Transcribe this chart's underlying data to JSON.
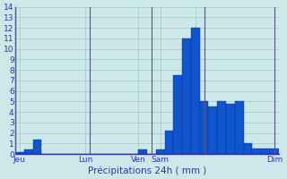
{
  "title": "",
  "xlabel": "Précipitations 24h ( mm )",
  "background_color": "#cce8e8",
  "bar_color": "#1155cc",
  "bar_edge_color": "#0033aa",
  "grid_color": "#aacccc",
  "text_color": "#3333aa",
  "ylim": [
    0,
    14
  ],
  "yticks": [
    0,
    1,
    2,
    3,
    4,
    5,
    6,
    7,
    8,
    9,
    10,
    11,
    12,
    13,
    14
  ],
  "values": [
    0.2,
    0.4,
    1.4,
    0,
    0,
    0,
    0,
    0,
    0,
    0,
    0,
    0,
    0,
    0,
    0.4,
    0,
    0.4,
    2.2,
    7.5,
    11,
    12,
    5,
    4.5,
    5,
    4.8,
    5,
    1,
    0.5,
    0.5,
    0.5
  ],
  "xtick_positions": [
    0.5,
    8,
    14,
    16.5,
    20.5,
    29.5
  ],
  "xtick_labels": [
    "Jeu",
    "Lun",
    "Ven",
    "Sam",
    "",
    "Dim"
  ],
  "vline_positions": [
    0,
    8.5,
    15.5,
    21.5,
    29.5
  ]
}
